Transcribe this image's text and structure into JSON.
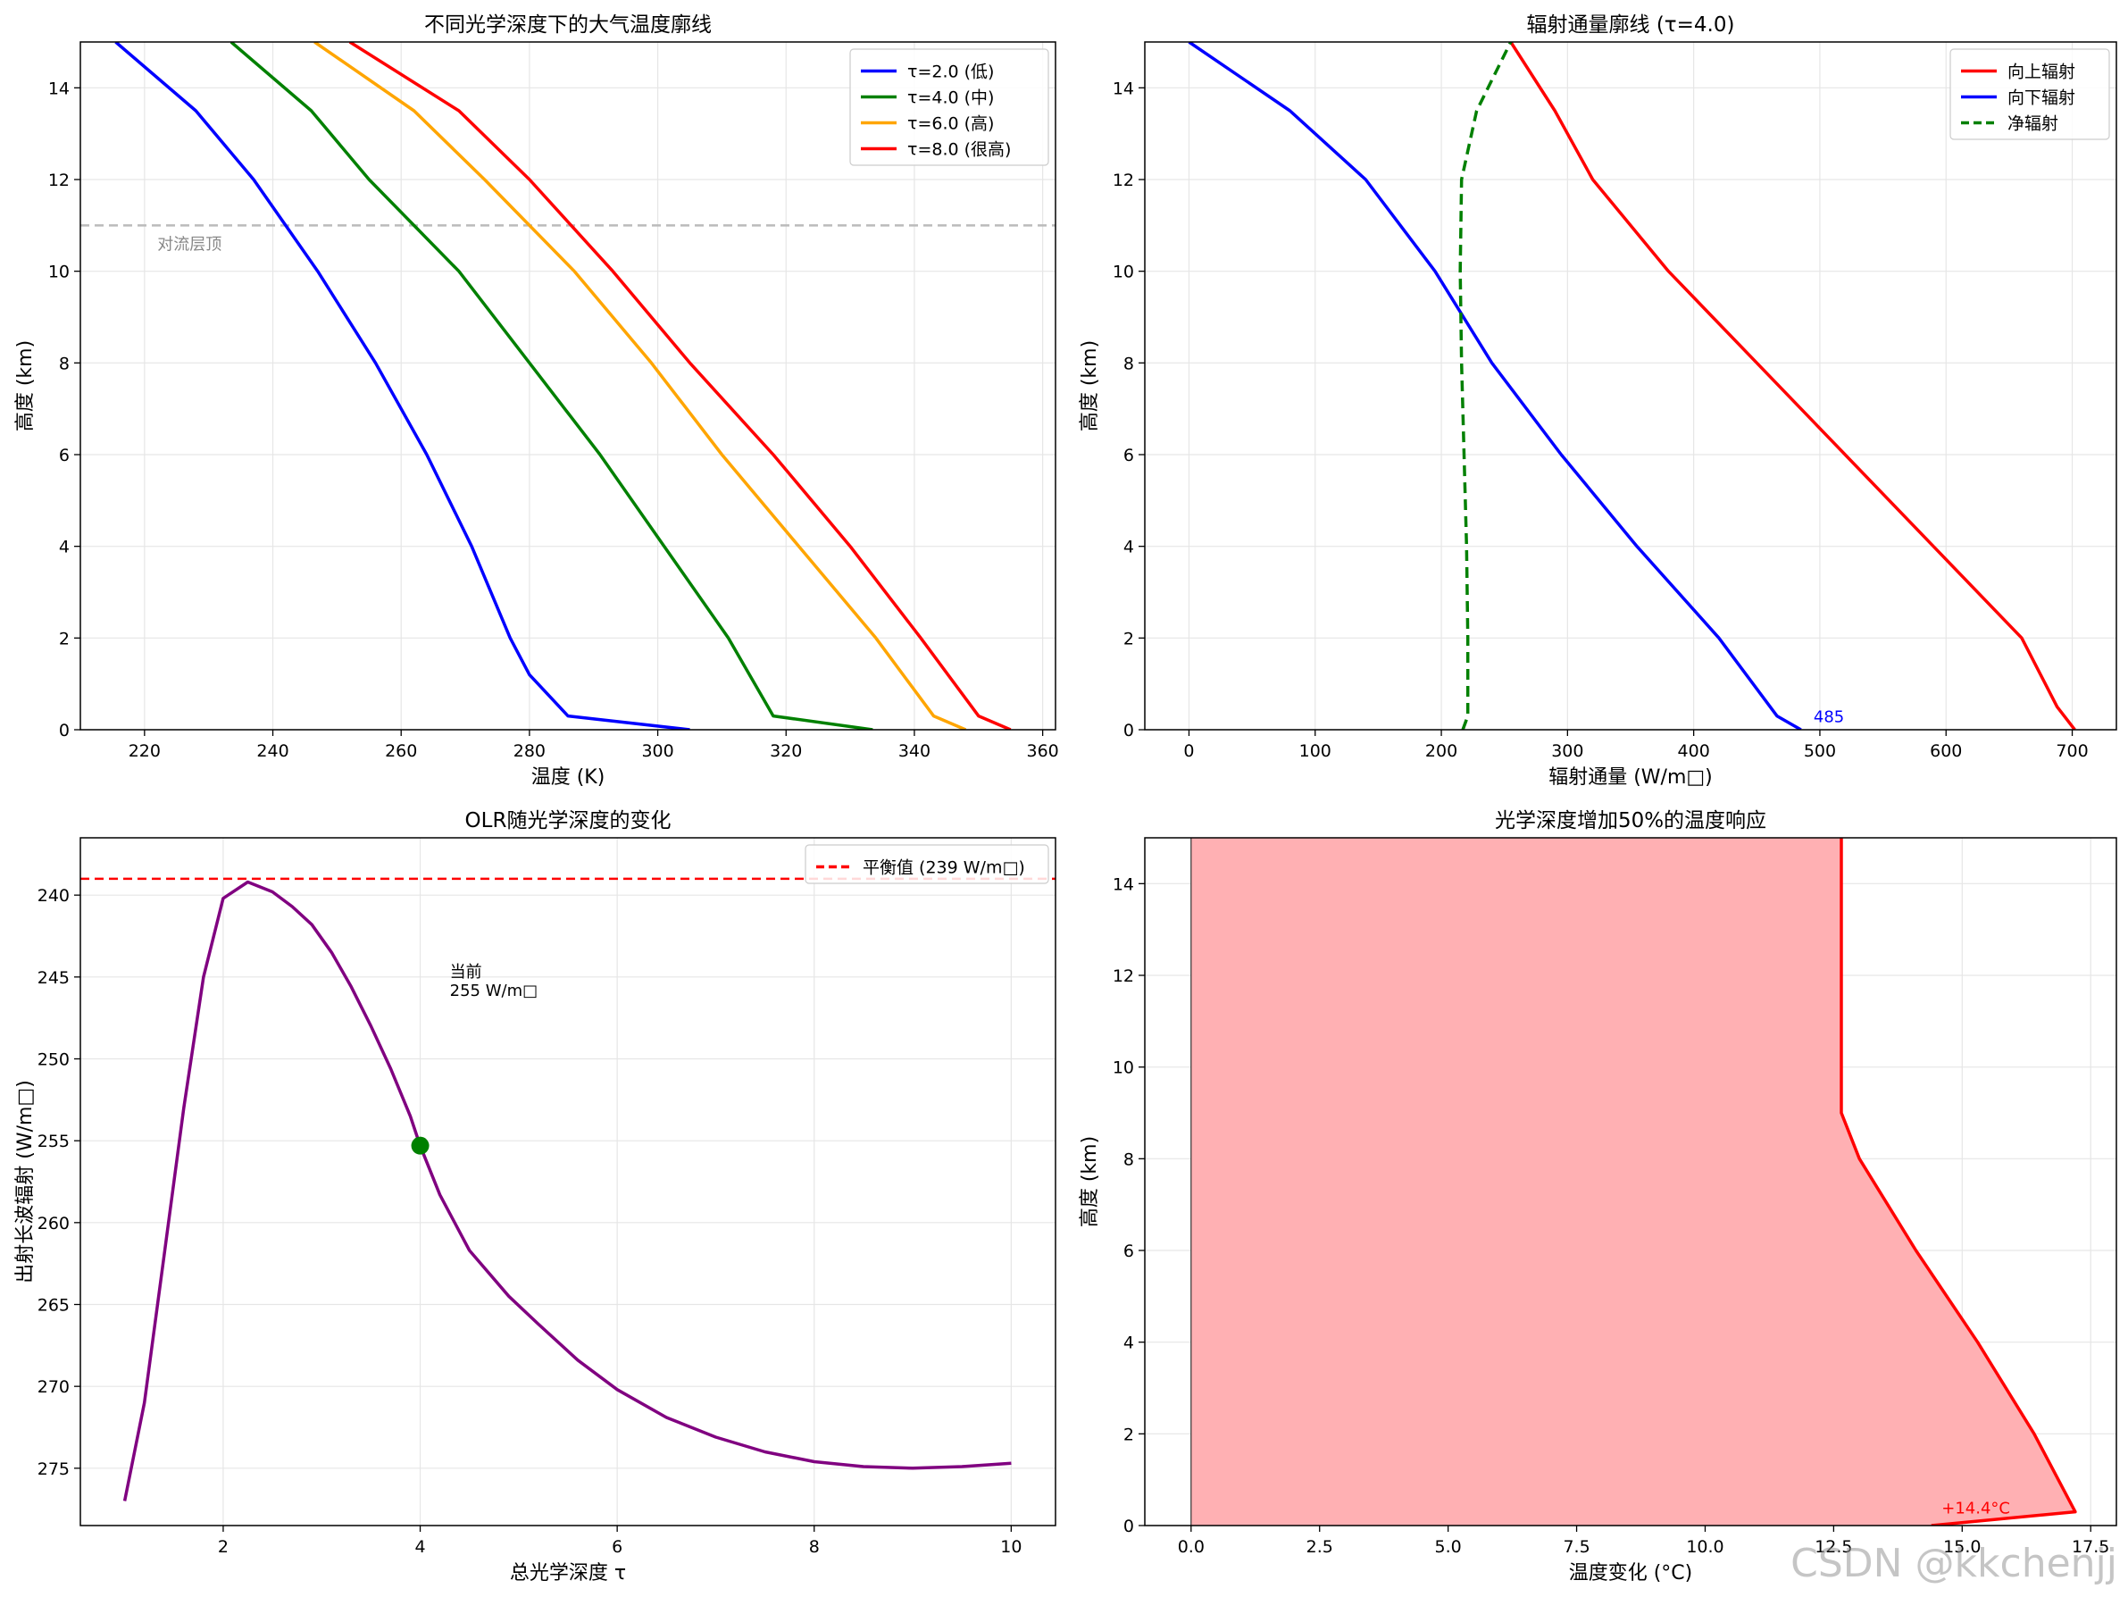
{
  "watermark": "CSDN @kkchenjj",
  "chart_data": [
    {
      "type": "line",
      "title": "不同光学深度下的大气温度廓线",
      "xlabel": "温度 (K)",
      "ylabel": "高度 (km)",
      "xlim": [
        210,
        362
      ],
      "ylim": [
        15,
        0
      ],
      "xticks": [
        220,
        240,
        260,
        280,
        300,
        320,
        340,
        360
      ],
      "yticks": [
        0,
        2,
        4,
        6,
        8,
        10,
        12,
        14
      ],
      "grid": true,
      "legend": "top-right",
      "hline": {
        "y": 11,
        "label": "对流层顶",
        "color": "#bbbbbb"
      },
      "series": [
        {
          "name": "τ=2.0 (低)",
          "color": "#0000ff",
          "points": [
            [
              305,
              0
            ],
            [
              286,
              0.3
            ],
            [
              280,
              1.2
            ],
            [
              277,
              2
            ],
            [
              271,
              4
            ],
            [
              264,
              6
            ],
            [
              256,
              8
            ],
            [
              247,
              10
            ],
            [
              237,
              12
            ],
            [
              228,
              13.5
            ],
            [
              215.5,
              15
            ]
          ]
        },
        {
          "name": "τ=4.0 (中)",
          "color": "#008000",
          "points": [
            [
              333.5,
              0
            ],
            [
              318,
              0.3
            ],
            [
              311,
              2
            ],
            [
              301,
              4
            ],
            [
              291,
              6
            ],
            [
              280,
              8
            ],
            [
              269,
              10
            ],
            [
              255,
              12
            ],
            [
              246,
              13.5
            ],
            [
              233.5,
              15
            ]
          ]
        },
        {
          "name": "τ=6.0 (高)",
          "color": "#ffa500",
          "points": [
            [
              348,
              0
            ],
            [
              343,
              0.3
            ],
            [
              334,
              2
            ],
            [
              322,
              4
            ],
            [
              310,
              6
            ],
            [
              299,
              8
            ],
            [
              287,
              10
            ],
            [
              273,
              12
            ],
            [
              262,
              13.5
            ],
            [
              246.5,
              15
            ]
          ]
        },
        {
          "name": "τ=8.0 (很高)",
          "color": "#ff0000",
          "points": [
            [
              355,
              0
            ],
            [
              350,
              0.3
            ],
            [
              341,
              2
            ],
            [
              330,
              4
            ],
            [
              318,
              6
            ],
            [
              305,
              8
            ],
            [
              293,
              10
            ],
            [
              280,
              12
            ],
            [
              269,
              13.5
            ],
            [
              252,
              15
            ]
          ]
        }
      ]
    },
    {
      "type": "line",
      "title": "辐射通量廓线 (τ=4.0)",
      "xlabel": "辐射通量 (W/m□)",
      "ylabel": "高度 (km)",
      "xlim": [
        -35,
        735
      ],
      "ylim": [
        15,
        0
      ],
      "xticks": [
        0,
        100,
        200,
        300,
        400,
        500,
        600,
        700
      ],
      "yticks": [
        0,
        2,
        4,
        6,
        8,
        10,
        12,
        14
      ],
      "grid": true,
      "legend": "top-right",
      "annotation": {
        "text": "485",
        "x": 495,
        "y": 0.4,
        "color": "#0000ff"
      },
      "series": [
        {
          "name": "向上辐射",
          "color": "#ff0000",
          "dash": false,
          "points": [
            [
              702,
              0
            ],
            [
              688,
              0.5
            ],
            [
              660,
              2
            ],
            [
              590,
              4
            ],
            [
              520,
              6
            ],
            [
              450,
              8
            ],
            [
              380,
              10
            ],
            [
              320,
              12
            ],
            [
              290,
              13.5
            ],
            [
              255,
              15
            ]
          ]
        },
        {
          "name": "向下辐射",
          "color": "#0000ff",
          "dash": false,
          "points": [
            [
              485,
              0
            ],
            [
              466,
              0.3
            ],
            [
              420,
              2
            ],
            [
              355,
              4
            ],
            [
              295,
              6
            ],
            [
              240,
              8
            ],
            [
              195,
              10
            ],
            [
              140,
              12
            ],
            [
              80,
              13.5
            ],
            [
              0,
              15
            ]
          ]
        },
        {
          "name": "净辐射",
          "color": "#008000",
          "dash": true,
          "points": [
            [
              217,
              0
            ],
            [
              221,
              0.3
            ],
            [
              221,
              2
            ],
            [
              220,
              4
            ],
            [
              218,
              6
            ],
            [
              216,
              8
            ],
            [
              215,
              10
            ],
            [
              216,
              12
            ],
            [
              228,
              13.5
            ],
            [
              255,
              15
            ]
          ]
        }
      ]
    },
    {
      "type": "line",
      "title": "OLR随光学深度的变化",
      "xlabel": "总光学深度 τ",
      "ylabel": "出射长波辐射 (W/m□)",
      "xlim": [
        0.55,
        10.45
      ],
      "ylim": [
        236.5,
        278.5
      ],
      "xticks": [
        2,
        4,
        6,
        8,
        10
      ],
      "yticks": [
        240,
        245,
        250,
        255,
        260,
        265,
        270,
        275
      ],
      "grid": true,
      "legend": "top-right",
      "hline": {
        "y": 239,
        "label": "平衡值 (239 W/m□)",
        "color": "#ff0000"
      },
      "marker": {
        "x": 4.0,
        "y": 255.3,
        "color": "#008000"
      },
      "annotation": {
        "line1": "当前",
        "line2": "255 W/m□",
        "x": 4.3,
        "y": 245.5
      },
      "series": [
        {
          "name": "OLR",
          "color": "#800080",
          "points": [
            [
              1.0,
              277
            ],
            [
              1.2,
              271
            ],
            [
              1.4,
              262
            ],
            [
              1.6,
              253
            ],
            [
              1.8,
              245
            ],
            [
              2.0,
              240.2
            ],
            [
              2.25,
              239.2
            ],
            [
              2.5,
              239.8
            ],
            [
              2.7,
              240.7
            ],
            [
              2.9,
              241.8
            ],
            [
              3.1,
              243.5
            ],
            [
              3.3,
              245.6
            ],
            [
              3.5,
              248
            ],
            [
              3.7,
              250.6
            ],
            [
              3.9,
              253.5
            ],
            [
              4.0,
              255.3
            ],
            [
              4.2,
              258.3
            ],
            [
              4.5,
              261.7
            ],
            [
              4.9,
              264.5
            ],
            [
              5.2,
              266.2
            ],
            [
              5.6,
              268.4
            ],
            [
              6.0,
              270.2
            ],
            [
              6.5,
              271.9
            ],
            [
              7.0,
              273.1
            ],
            [
              7.5,
              274.0
            ],
            [
              8.0,
              274.6
            ],
            [
              8.5,
              274.9
            ],
            [
              9.0,
              275.0
            ],
            [
              9.5,
              274.9
            ],
            [
              10.0,
              274.7
            ]
          ]
        }
      ]
    },
    {
      "type": "area",
      "title": "光学深度增加50%的温度响应",
      "xlabel": "温度变化 (°C)",
      "ylabel": "高度 (km)",
      "xlim": [
        -0.9,
        18.0
      ],
      "ylim": [
        15,
        0
      ],
      "xticks": [
        0.0,
        2.5,
        5.0,
        7.5,
        10.0,
        12.5,
        15.0,
        17.5
      ],
      "yticks": [
        0,
        2,
        4,
        6,
        8,
        10,
        12,
        14
      ],
      "grid": true,
      "annotation": {
        "text": "+14.4°C",
        "x": 14.6,
        "y": 0.5,
        "color": "#ff0000"
      },
      "series": [
        {
          "name": "ΔT",
          "color": "#ff0000",
          "fill": "#ffb0b3",
          "points": [
            [
              14.4,
              0
            ],
            [
              17.2,
              0.3
            ],
            [
              16.4,
              2
            ],
            [
              15.3,
              4
            ],
            [
              14.1,
              6
            ],
            [
              13.0,
              8
            ],
            [
              12.65,
              9
            ],
            [
              12.65,
              10
            ],
            [
              12.65,
              12
            ],
            [
              12.65,
              14
            ],
            [
              12.65,
              15
            ]
          ]
        }
      ]
    }
  ]
}
